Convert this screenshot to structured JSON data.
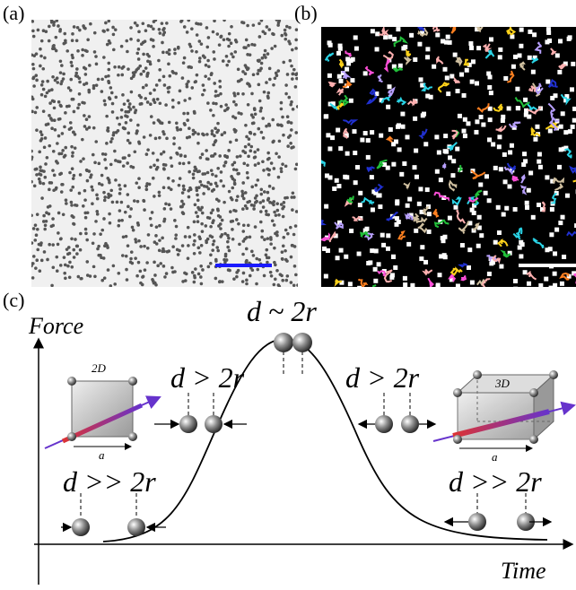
{
  "panels": {
    "a": {
      "label": "(a)"
    },
    "b": {
      "label": "(b)"
    },
    "c": {
      "label": "(c)",
      "y_axis": "Force",
      "x_axis": "Time",
      "annotations": {
        "far_left": "d >> 2r",
        "near_left": "d > 2r",
        "contact": "d ~ 2r",
        "near_right": "d > 2r",
        "far_right": "d >> 2r"
      },
      "insets": {
        "left": {
          "label": "2D",
          "edge": "a"
        },
        "right": {
          "label": "3D",
          "edge": "a"
        }
      }
    }
  }
}
